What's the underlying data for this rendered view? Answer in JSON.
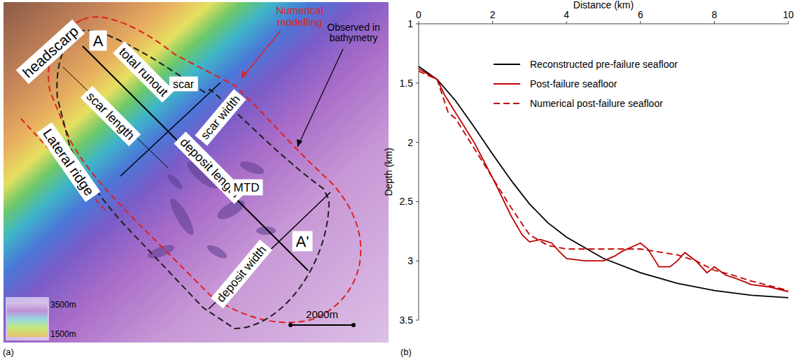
{
  "figure": {
    "panel_labels": [
      "(a)",
      "(b)"
    ]
  },
  "map": {
    "labels": {
      "headscarp": "headscarp",
      "A": "A",
      "total_runout": "total runout",
      "scar": "scar",
      "scar_width": "scar width",
      "scar_length": "scar length",
      "lateral_ridge": "Lateral ridge",
      "deposit_length": "deposit length",
      "MTD": "MTD",
      "A_prime": "A'",
      "deposit_width": "deposit width"
    },
    "outline_labels": {
      "numerical": "Numerical modelling",
      "observed": "Observed in bathymetry"
    },
    "scale_bar": "2000m",
    "colorbar": {
      "max_label": "3500m",
      "min_label": "1500m"
    }
  },
  "chart_data": {
    "type": "line",
    "x_label": "Distance (km)",
    "y_label": "Depth (km)",
    "xlim": [
      0,
      10
    ],
    "xticks": [
      0,
      2,
      4,
      6,
      8,
      10
    ],
    "ylim": [
      3.5,
      1
    ],
    "yticks": [
      1,
      1.5,
      2,
      2.5,
      3,
      3.5
    ],
    "legend": "upper-right",
    "series": [
      {
        "name": "Reconstructed pre-failure seafloor",
        "color": "#000000",
        "line_style": "solid",
        "x": [
          0,
          0.5,
          1,
          1.5,
          2,
          2.5,
          3,
          3.5,
          4,
          5,
          6,
          7,
          8,
          9,
          10
        ],
        "values": [
          1.36,
          1.47,
          1.65,
          1.87,
          2.1,
          2.32,
          2.52,
          2.68,
          2.8,
          2.98,
          3.1,
          3.19,
          3.25,
          3.29,
          3.31
        ]
      },
      {
        "name": "Post-failure seafloor",
        "color": "#c00000",
        "line_style": "solid",
        "x": [
          0,
          0.5,
          0.7,
          1,
          1.5,
          2,
          2.5,
          2.8,
          3,
          3.3,
          3.6,
          3.8,
          4,
          4.5,
          5,
          5.3,
          5.5,
          6,
          6.2,
          6.5,
          6.8,
          7,
          7.2,
          7.5,
          7.8,
          8,
          8.3,
          8.6,
          9,
          9.5,
          10
        ],
        "values": [
          1.38,
          1.47,
          1.6,
          1.75,
          2.0,
          2.3,
          2.62,
          2.78,
          2.84,
          2.82,
          2.85,
          2.92,
          2.98,
          3.0,
          3.0,
          2.96,
          2.92,
          2.85,
          2.9,
          3.05,
          3.05,
          3.0,
          2.93,
          3.0,
          3.1,
          3.05,
          3.12,
          3.15,
          3.2,
          3.22,
          3.26
        ]
      },
      {
        "name": "Numerical post-failure seafloor",
        "color": "#c00000",
        "line_style": "dashed",
        "x": [
          0,
          0.5,
          0.8,
          1,
          1.5,
          2,
          2.5,
          3,
          3.5,
          4,
          5,
          6,
          7,
          7.5,
          8,
          8.5,
          9,
          10
        ],
        "values": [
          1.4,
          1.47,
          1.75,
          1.8,
          2.05,
          2.3,
          2.55,
          2.78,
          2.87,
          2.9,
          2.9,
          2.9,
          2.95,
          3.0,
          3.08,
          3.12,
          3.17,
          3.25
        ]
      }
    ]
  }
}
